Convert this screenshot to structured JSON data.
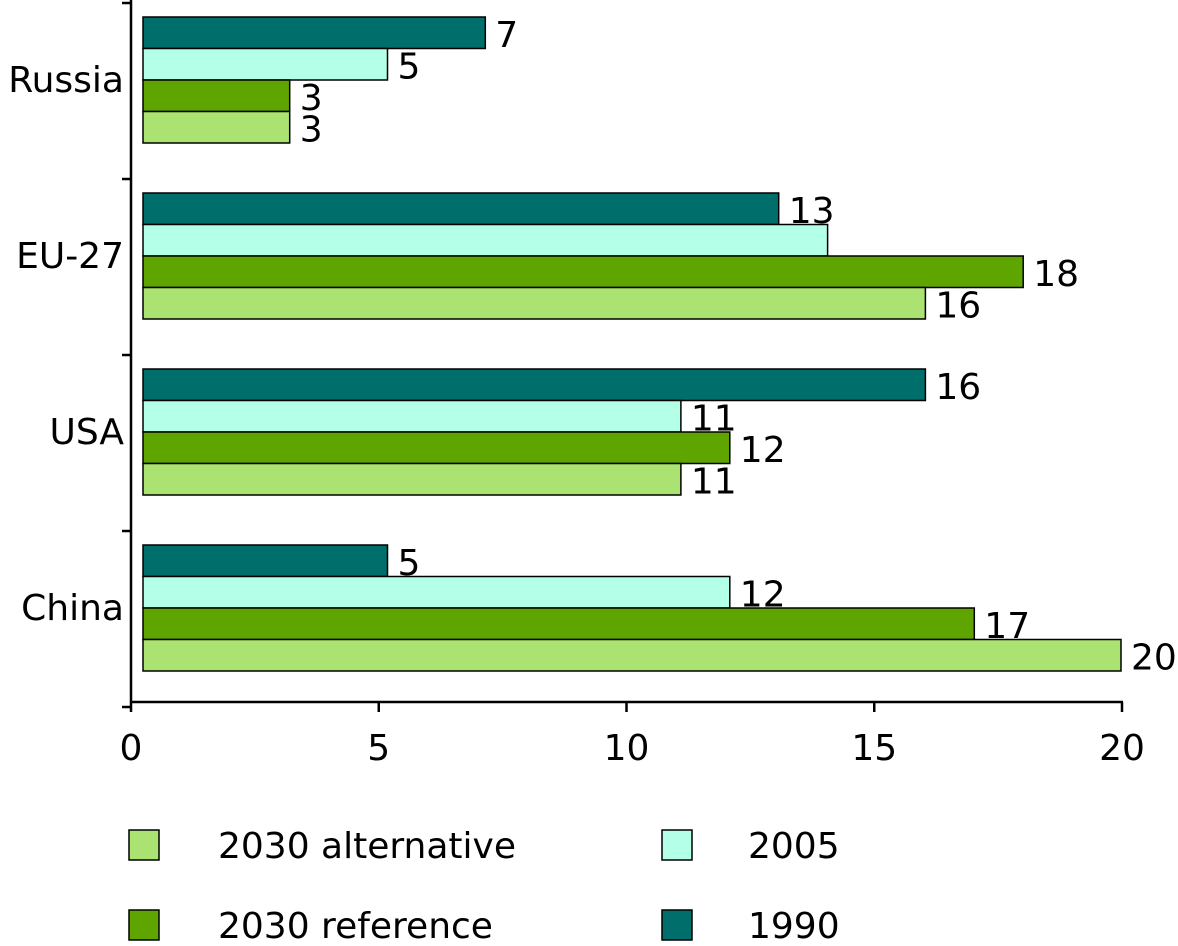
{
  "chart_data": {
    "type": "bar",
    "orientation": "horizontal",
    "categories": [
      "Russia",
      "EU-27",
      "USA",
      "China"
    ],
    "series": [
      {
        "name": "1990",
        "color": "#006E6A",
        "values": [
          7,
          13,
          16,
          5
        ],
        "labels": [
          "7",
          "13",
          "16",
          "5"
        ]
      },
      {
        "name": "2005",
        "color": "#B3FFE8",
        "values": [
          5,
          14,
          11,
          12
        ],
        "labels": [
          "5",
          "",
          "11",
          "12"
        ]
      },
      {
        "name": "2030 reference",
        "color": "#5FA500",
        "values": [
          3,
          18,
          12,
          17
        ],
        "labels": [
          "3",
          "18",
          "12",
          "17"
        ]
      },
      {
        "name": "2030 alternative",
        "color": "#AAE372",
        "values": [
          3,
          16,
          11,
          20
        ],
        "labels": [
          "3",
          "16",
          "11",
          "20"
        ]
      }
    ],
    "xticks": [
      "0",
      "5",
      "10",
      "15",
      "20"
    ],
    "xlim": [
      0,
      20
    ],
    "title": "",
    "xlabel": "",
    "ylabel": "",
    "grid": false,
    "legend": {
      "placement": "bottom",
      "order": [
        "2030 alternative",
        "2005",
        "2030 reference",
        "1990"
      ]
    }
  }
}
